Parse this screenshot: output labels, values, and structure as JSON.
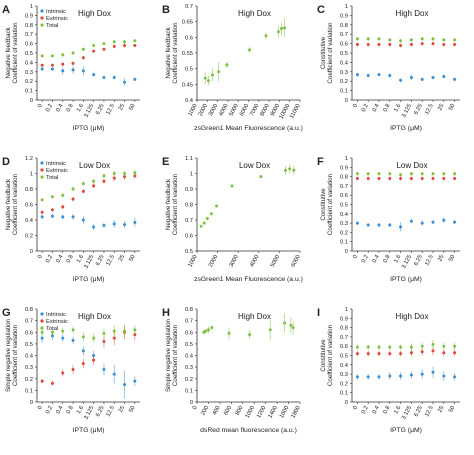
{
  "colors": {
    "intrinsic": "#3a8fd6",
    "extrinsic": "#e0463c",
    "total": "#7fc241",
    "axis": "#333333",
    "text": "#222222"
  },
  "chart_data": [
    {
      "panel": "A",
      "type": "scatter",
      "title": "High Dox",
      "xlabel": "IPTG (μM)",
      "ylabel": [
        "Negative feedback",
        "Coefficient of variation"
      ],
      "categories": [
        "0",
        "0.2",
        "0.4",
        "0.8",
        "1.6",
        "3.125",
        "6.25",
        "12.5",
        "25",
        "50"
      ],
      "ylim": [
        0,
        1
      ],
      "yticks": [
        "0",
        "0.1",
        "0.2",
        "0.3",
        "0.4",
        "0.5",
        "0.6",
        "0.7",
        "0.8",
        "0.9",
        "1"
      ],
      "grid": false,
      "legend": "top-left",
      "legend_entries": [
        "Intrinsic",
        "Extrinsic",
        "Total"
      ],
      "series": [
        {
          "name": "Intrinsic",
          "color_key": "intrinsic",
          "values": [
            0.33,
            0.33,
            0.31,
            0.32,
            0.31,
            0.27,
            0.24,
            0.24,
            0.19,
            0.22
          ],
          "errors": [
            0.02,
            0.02,
            0.04,
            0.04,
            0.05,
            0.02,
            0.01,
            0.02,
            0.04,
            0.02
          ]
        },
        {
          "name": "Extrinsic",
          "color_key": "extrinsic",
          "values": [
            0.37,
            0.37,
            0.38,
            0.39,
            0.45,
            0.52,
            0.54,
            0.57,
            0.58,
            0.58
          ],
          "errors": [
            0.01,
            0.01,
            0.02,
            0.02,
            0.02,
            0.01,
            0.01,
            0.02,
            0.02,
            0.01
          ]
        },
        {
          "name": "Total",
          "color_key": "total",
          "values": [
            0.47,
            0.47,
            0.48,
            0.5,
            0.54,
            0.58,
            0.6,
            0.62,
            0.62,
            0.63
          ],
          "errors": [
            0.01,
            0.01,
            0.02,
            0.02,
            0.02,
            0.01,
            0.01,
            0.02,
            0.02,
            0.01
          ]
        }
      ]
    },
    {
      "panel": "B",
      "type": "scatter",
      "title": "High Dox",
      "xlabel": "zsGreen1 Mean Fluorescence (a.u.)",
      "ylabel": [
        "Negative feedback",
        "Coefficient of variation"
      ],
      "xlim": [
        1000,
        11000
      ],
      "xticks": [
        "1000",
        "2000",
        "3000",
        "4000",
        "5000",
        "6000",
        "7000",
        "8000",
        "9000",
        "10000",
        "11000"
      ],
      "ylim": [
        0.4,
        0.7
      ],
      "yticks": [
        "0.4",
        "0.45",
        "0.5",
        "0.55",
        "0.6",
        "0.65",
        "0.7"
      ],
      "grid": false,
      "series": [
        {
          "color_key": "total",
          "x": [
            1800,
            2100,
            2500,
            3100,
            3900,
            6100,
            7700,
            8900,
            9200,
            9500
          ],
          "y": [
            0.47,
            0.462,
            0.48,
            0.49,
            0.512,
            0.56,
            0.605,
            0.618,
            0.628,
            0.63
          ],
          "errors": [
            0.02,
            0.015,
            0.02,
            0.03,
            0.01,
            0.008,
            0.01,
            0.02,
            0.02,
            0.03
          ]
        }
      ]
    },
    {
      "panel": "C",
      "type": "scatter",
      "title": "High Dox",
      "xlabel": "IPTG (μM)",
      "ylabel": [
        "Constitutive",
        "Coefficient of variation"
      ],
      "categories": [
        "0",
        "0.2",
        "0.4",
        "0.8",
        "1.6",
        "3.125",
        "6.25",
        "12.5",
        "25",
        "50"
      ],
      "ylim": [
        0,
        1
      ],
      "yticks": [
        "0",
        "0.1",
        "0.2",
        "0.3",
        "0.4",
        "0.5",
        "0.6",
        "0.7",
        "0.8",
        "0.9",
        "1"
      ],
      "grid": false,
      "series": [
        {
          "color_key": "intrinsic",
          "values": [
            0.27,
            0.26,
            0.27,
            0.26,
            0.21,
            0.24,
            0.22,
            0.24,
            0.25,
            0.22
          ],
          "errors": [
            0.02,
            0.02,
            0.02,
            0.02,
            0.02,
            0.03,
            0.02,
            0.02,
            0.02,
            0.02
          ]
        },
        {
          "color_key": "extrinsic",
          "values": [
            0.59,
            0.59,
            0.59,
            0.59,
            0.58,
            0.59,
            0.6,
            0.6,
            0.59,
            0.59
          ],
          "errors": [
            0.02,
            0.02,
            0.02,
            0.02,
            0.02,
            0.02,
            0.02,
            0.02,
            0.02,
            0.02
          ]
        },
        {
          "color_key": "total",
          "values": [
            0.65,
            0.65,
            0.65,
            0.64,
            0.63,
            0.64,
            0.65,
            0.65,
            0.64,
            0.64
          ],
          "errors": [
            0.02,
            0.02,
            0.02,
            0.02,
            0.02,
            0.02,
            0.02,
            0.02,
            0.02,
            0.02
          ]
        }
      ]
    },
    {
      "panel": "D",
      "type": "scatter",
      "title": "Low Dox",
      "xlabel": "IPTG (μM)",
      "ylabel": [
        "Negative feedback",
        "Coefficient of variation"
      ],
      "categories": [
        "0",
        "0.2",
        "0.4",
        "0.8",
        "1.6",
        "3.125",
        "6.25",
        "12.5",
        "25",
        "50"
      ],
      "ylim": [
        0,
        1.2
      ],
      "yticks": [
        "0",
        "0.2",
        "0.4",
        "0.6",
        "0.8",
        "1",
        "1.2"
      ],
      "grid": false,
      "legend": "top-left",
      "legend_entries": [
        "Intrinsic",
        "Extrinsic",
        "Total"
      ],
      "series": [
        {
          "name": "Intrinsic",
          "color_key": "intrinsic",
          "values": [
            0.44,
            0.45,
            0.44,
            0.44,
            0.4,
            0.31,
            0.33,
            0.35,
            0.34,
            0.37
          ],
          "errors": [
            0.03,
            0.03,
            0.03,
            0.04,
            0.05,
            0.04,
            0.03,
            0.05,
            0.05,
            0.06
          ]
        },
        {
          "name": "Extrinsic",
          "color_key": "extrinsic",
          "values": [
            0.5,
            0.53,
            0.57,
            0.67,
            0.77,
            0.84,
            0.9,
            0.94,
            0.96,
            0.97
          ],
          "errors": [
            0.02,
            0.02,
            0.03,
            0.03,
            0.03,
            0.03,
            0.03,
            0.04,
            0.04,
            0.04
          ]
        },
        {
          "name": "Total",
          "color_key": "total",
          "values": [
            0.66,
            0.7,
            0.72,
            0.8,
            0.87,
            0.9,
            0.97,
            1.0,
            1.0,
            1.01
          ],
          "errors": [
            0.02,
            0.02,
            0.03,
            0.03,
            0.03,
            0.03,
            0.03,
            0.04,
            0.04,
            0.04
          ]
        }
      ]
    },
    {
      "panel": "E",
      "type": "scatter",
      "title": "Low Dox",
      "xlabel": "zsGreen1 Mean Fluorescence (a.u.)",
      "ylabel": [
        "Negative feedback",
        "Coefficient of variation"
      ],
      "xlim": [
        1000,
        6000
      ],
      "xticks": [
        "1000",
        "2000",
        "3000",
        "4000",
        "5000",
        "6000"
      ],
      "ylim": [
        0.5,
        1.1
      ],
      "yticks": [
        "0.5",
        "0.6",
        "0.7",
        "0.8",
        "0.9",
        "1",
        "1.1"
      ],
      "grid": false,
      "series": [
        {
          "color_key": "total",
          "x": [
            1200,
            1350,
            1500,
            1700,
            1950,
            2700,
            4100,
            5300,
            5500,
            5700
          ],
          "y": [
            0.66,
            0.68,
            0.71,
            0.74,
            0.79,
            0.92,
            0.98,
            1.02,
            1.03,
            1.02
          ],
          "errors": [
            0.01,
            0.01,
            0.01,
            0.01,
            0.01,
            0.01,
            0.01,
            0.03,
            0.03,
            0.03
          ]
        }
      ]
    },
    {
      "panel": "F",
      "type": "scatter",
      "title": "Low Dox",
      "xlabel": "IPTG (μM)",
      "ylabel": [
        "Constitutive",
        "Coefficient of variation"
      ],
      "categories": [
        "0",
        "0.2",
        "0.4",
        "0.8",
        "1.6",
        "3.125",
        "6.25",
        "12.5",
        "25",
        "50"
      ],
      "ylim": [
        0,
        1
      ],
      "yticks": [
        "0",
        "0.1",
        "0.2",
        "0.3",
        "0.4",
        "0.5",
        "0.6",
        "0.7",
        "0.8",
        "0.9",
        "1"
      ],
      "grid": false,
      "series": [
        {
          "color_key": "intrinsic",
          "values": [
            0.3,
            0.28,
            0.28,
            0.28,
            0.26,
            0.32,
            0.3,
            0.31,
            0.33,
            0.31
          ],
          "errors": [
            0.02,
            0.02,
            0.02,
            0.02,
            0.05,
            0.02,
            0.03,
            0.02,
            0.03,
            0.02
          ]
        },
        {
          "color_key": "extrinsic",
          "values": [
            0.78,
            0.78,
            0.78,
            0.78,
            0.78,
            0.78,
            0.78,
            0.78,
            0.78,
            0.78
          ],
          "errors": [
            0.02,
            0.02,
            0.02,
            0.02,
            0.02,
            0.02,
            0.02,
            0.02,
            0.02,
            0.02
          ]
        },
        {
          "color_key": "total",
          "values": [
            0.83,
            0.83,
            0.83,
            0.83,
            0.82,
            0.83,
            0.83,
            0.83,
            0.83,
            0.83
          ],
          "errors": [
            0.02,
            0.02,
            0.02,
            0.02,
            0.02,
            0.02,
            0.02,
            0.02,
            0.02,
            0.02
          ]
        }
      ]
    },
    {
      "panel": "G",
      "type": "scatter",
      "title": "High Dox",
      "xlabel": "IPTG (μM)",
      "ylabel": [
        "Simple negative regulation",
        "Coefficient of variation"
      ],
      "categories": [
        "0",
        "0.2",
        "0.4",
        "0.8",
        "1.6",
        "3.125",
        "6.25",
        "12.5",
        "25",
        "50"
      ],
      "ylim": [
        0,
        0.8
      ],
      "yticks": [
        "0",
        "0.1",
        "0.2",
        "0.3",
        "0.4",
        "0.5",
        "0.6",
        "0.7",
        "0.8"
      ],
      "grid": false,
      "legend": "top-left",
      "legend_entries": [
        "Intrinsic",
        "Extrinsic",
        "Total"
      ],
      "series": [
        {
          "name": "Intrinsic",
          "color_key": "intrinsic",
          "values": [
            0.55,
            0.57,
            0.55,
            0.53,
            0.44,
            0.4,
            0.28,
            0.24,
            0.15,
            0.18
          ],
          "errors": [
            0.04,
            0.04,
            0.03,
            0.03,
            0.04,
            0.04,
            0.05,
            0.08,
            0.12,
            0.04
          ]
        },
        {
          "name": "Extrinsic",
          "color_key": "extrinsic",
          "values": [
            0.18,
            0.16,
            0.25,
            0.28,
            0.33,
            0.36,
            0.52,
            0.55,
            0.6,
            0.58
          ],
          "errors": [
            0.02,
            0.02,
            0.03,
            0.04,
            0.04,
            0.04,
            0.05,
            0.06,
            0.06,
            0.05
          ]
        },
        {
          "name": "Total",
          "color_key": "total",
          "values": [
            0.6,
            0.6,
            0.61,
            0.62,
            0.56,
            0.55,
            0.59,
            0.61,
            0.61,
            0.62
          ],
          "errors": [
            0.03,
            0.03,
            0.03,
            0.03,
            0.04,
            0.04,
            0.04,
            0.05,
            0.05,
            0.04
          ]
        }
      ]
    },
    {
      "panel": "H",
      "type": "scatter",
      "title": "High Dox",
      "xlabel": "dsRed mean fluorescence (a.u.)",
      "ylabel": [
        "Simple negative regulation",
        "Coefficient of variation"
      ],
      "xlim": [
        0,
        1800
      ],
      "xticks": [
        "0",
        "200",
        "400",
        "600",
        "800",
        "1000",
        "1200",
        "1400",
        "1600",
        "1800"
      ],
      "ylim": [
        0,
        0.8
      ],
      "yticks": [
        "0",
        "0.1",
        "0.2",
        "0.3",
        "0.4",
        "0.5",
        "0.6",
        "0.7",
        "0.8"
      ],
      "grid": false,
      "series": [
        {
          "color_key": "total",
          "x": [
            120,
            150,
            200,
            260,
            560,
            920,
            1280,
            1530,
            1640,
            1680
          ],
          "y": [
            0.6,
            0.61,
            0.62,
            0.64,
            0.59,
            0.58,
            0.62,
            0.68,
            0.66,
            0.64
          ],
          "errors": [
            0.02,
            0.02,
            0.03,
            0.02,
            0.05,
            0.04,
            0.09,
            0.08,
            0.07,
            0.06
          ]
        }
      ]
    },
    {
      "panel": "I",
      "type": "scatter",
      "title": "High Dox",
      "xlabel": "IPTG (μM)",
      "ylabel": [
        "Constitutive",
        "Coefficient of variation"
      ],
      "categories": [
        "0",
        "0.2",
        "0.4",
        "0.8",
        "1.6",
        "3.125",
        "6.25",
        "12.5",
        "25",
        "50"
      ],
      "ylim": [
        0,
        1
      ],
      "yticks": [
        "0",
        "0.1",
        "0.2",
        "0.3",
        "0.4",
        "0.5",
        "0.6",
        "0.7",
        "0.8",
        "0.9",
        "1"
      ],
      "grid": false,
      "series": [
        {
          "color_key": "intrinsic",
          "values": [
            0.27,
            0.27,
            0.27,
            0.28,
            0.28,
            0.29,
            0.3,
            0.32,
            0.28,
            0.27
          ],
          "errors": [
            0.03,
            0.03,
            0.03,
            0.04,
            0.04,
            0.04,
            0.05,
            0.06,
            0.05,
            0.04
          ]
        },
        {
          "color_key": "extrinsic",
          "values": [
            0.52,
            0.52,
            0.52,
            0.52,
            0.52,
            0.53,
            0.54,
            0.55,
            0.53,
            0.53
          ],
          "errors": [
            0.03,
            0.03,
            0.03,
            0.03,
            0.03,
            0.04,
            0.04,
            0.05,
            0.04,
            0.04
          ]
        },
        {
          "color_key": "total",
          "values": [
            0.59,
            0.59,
            0.59,
            0.59,
            0.59,
            0.59,
            0.6,
            0.62,
            0.6,
            0.6
          ],
          "errors": [
            0.03,
            0.03,
            0.03,
            0.03,
            0.03,
            0.04,
            0.04,
            0.05,
            0.04,
            0.04
          ]
        }
      ]
    }
  ]
}
